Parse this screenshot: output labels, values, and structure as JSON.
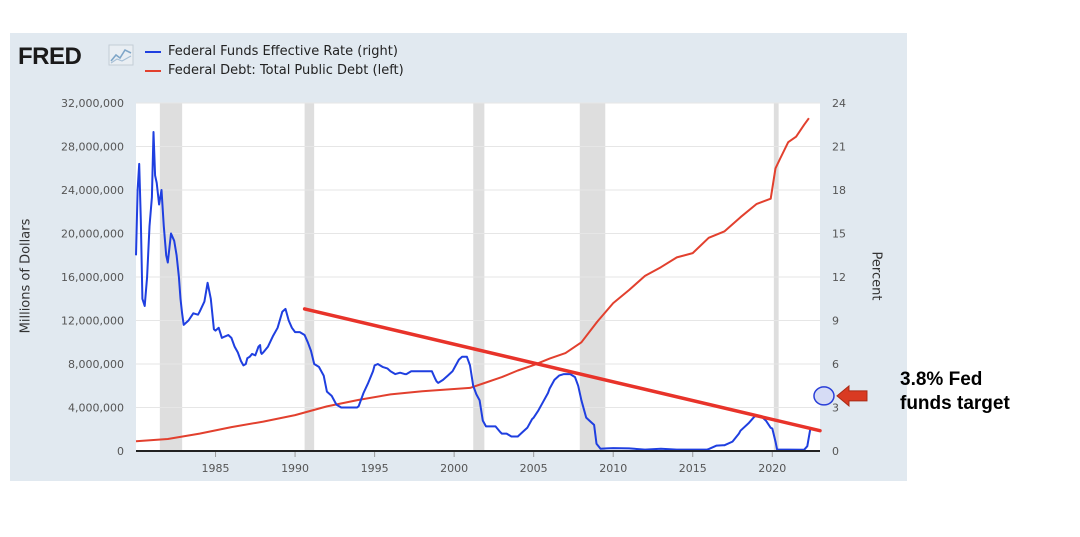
{
  "logo": {
    "text": "FRED"
  },
  "annotation": {
    "line1": "3.8% Fed",
    "line2": "funds target"
  },
  "colors": {
    "fedfunds": "#1f3fe0",
    "debt": "#e2402e",
    "trend": "#e8332a",
    "arrow": "#d93a22",
    "recession": "#dedede",
    "plot_bg": "#ffffff",
    "panel_bg": "#e1e9f0"
  },
  "chart_data": {
    "type": "line",
    "title": "",
    "xlabel": "",
    "ylabel_left": "Millions of Dollars",
    "ylabel_right": "Percent",
    "xlim": [
      1980,
      2023
    ],
    "ylim_left": [
      0,
      32000000
    ],
    "ylim_right": [
      0,
      24
    ],
    "x_ticks": [
      1985,
      1990,
      1995,
      2000,
      2005,
      2010,
      2015,
      2020
    ],
    "y_ticks_left": [
      "0",
      "4,000,000",
      "8,000,000",
      "12,000,000",
      "16,000,000",
      "20,000,000",
      "24,000,000",
      "28,000,000",
      "32,000,000"
    ],
    "y_ticks_left_values": [
      0,
      4000000,
      8000000,
      12000000,
      16000000,
      20000000,
      24000000,
      28000000,
      32000000
    ],
    "y_ticks_right": [
      0,
      3,
      6,
      9,
      12,
      15,
      18,
      21,
      24
    ],
    "legend": [
      "Federal Funds Effective Rate (right)",
      "Federal Debt: Total Public Debt (left)"
    ],
    "recessions": [
      [
        1981.5,
        1982.9
      ],
      [
        1990.6,
        1991.2
      ],
      [
        2001.2,
        2001.9
      ],
      [
        2007.9,
        2009.5
      ],
      [
        2020.1,
        2020.4
      ]
    ],
    "series": [
      {
        "name": "Federal Funds Effective Rate (right)",
        "axis": "right",
        "x": [
          1980.0,
          1980.1,
          1980.2,
          1980.3,
          1980.4,
          1980.55,
          1980.7,
          1980.85,
          1981.0,
          1981.1,
          1981.2,
          1981.3,
          1981.45,
          1981.6,
          1981.75,
          1981.9,
          1982.0,
          1982.2,
          1982.4,
          1982.55,
          1982.7,
          1982.8,
          1982.9,
          1983.0,
          1983.3,
          1983.6,
          1983.9,
          1984.0,
          1984.3,
          1984.5,
          1984.7,
          1984.9,
          1985.0,
          1985.2,
          1985.4,
          1985.6,
          1985.8,
          1986.0,
          1986.2,
          1986.4,
          1986.6,
          1986.75,
          1986.9,
          1987.0,
          1987.15,
          1987.3,
          1987.5,
          1987.7,
          1987.8,
          1987.85,
          1987.9,
          1988.0,
          1988.3,
          1988.6,
          1988.9,
          1989.2,
          1989.4,
          1989.6,
          1989.8,
          1990.0,
          1990.3,
          1990.6,
          1990.8,
          1991.0,
          1991.2,
          1991.5,
          1991.8,
          1992.0,
          1992.3,
          1992.6,
          1992.9,
          1993.0,
          1993.3,
          1993.6,
          1993.9,
          1994.0,
          1994.3,
          1994.6,
          1994.9,
          1995.0,
          1995.2,
          1995.5,
          1995.8,
          1996.0,
          1996.3,
          1996.6,
          1996.9,
          1997.0,
          1997.3,
          1997.6,
          1997.9,
          1998.0,
          1998.3,
          1998.6,
          1998.8,
          1998.9,
          1999.0,
          1999.3,
          1999.6,
          1999.9,
          2000.0,
          2000.3,
          2000.5,
          2000.8,
          2001.0,
          2001.2,
          2001.4,
          2001.6,
          2001.8,
          2002.0,
          2002.3,
          2002.6,
          2002.9,
          2003.0,
          2003.3,
          2003.6,
          2003.9,
          2004.0,
          2004.3,
          2004.6,
          2004.9,
          2005.0,
          2005.3,
          2005.6,
          2005.9,
          2006.0,
          2006.3,
          2006.6,
          2006.9,
          2007.0,
          2007.3,
          2007.6,
          2007.8,
          2008.0,
          2008.3,
          2008.6,
          2008.8,
          2008.95,
          2009.2,
          2009.6,
          2010.0,
          2011.0,
          2012.0,
          2013.0,
          2014.0,
          2015.0,
          2015.9,
          2016.0,
          2016.5,
          2016.9,
          2017.0,
          2017.5,
          2017.9,
          2018.0,
          2018.5,
          2018.9,
          2019.0,
          2019.3,
          2019.6,
          2019.9,
          2020.0,
          2020.2,
          2020.3,
          2021.0,
          2022.0,
          2022.2,
          2022.4
        ],
        "values": [
          13.5,
          18.0,
          19.8,
          16.0,
          10.5,
          10.0,
          12.0,
          15.5,
          17.5,
          22.0,
          19.0,
          18.5,
          17.0,
          18.0,
          15.5,
          13.5,
          13.0,
          15.0,
          14.5,
          13.5,
          12.0,
          10.5,
          9.5,
          8.7,
          9.0,
          9.5,
          9.4,
          9.6,
          10.3,
          11.6,
          10.5,
          8.4,
          8.3,
          8.5,
          7.8,
          7.9,
          8.0,
          7.8,
          7.2,
          6.8,
          6.2,
          5.9,
          6.0,
          6.4,
          6.5,
          6.7,
          6.6,
          7.2,
          7.3,
          6.8,
          6.7,
          6.8,
          7.2,
          7.9,
          8.5,
          9.6,
          9.8,
          9.0,
          8.5,
          8.2,
          8.2,
          8.0,
          7.5,
          6.9,
          6.0,
          5.8,
          5.2,
          4.1,
          3.8,
          3.2,
          3.0,
          3.0,
          3.0,
          3.0,
          3.0,
          3.1,
          4.0,
          4.7,
          5.5,
          5.9,
          6.0,
          5.8,
          5.7,
          5.5,
          5.3,
          5.4,
          5.3,
          5.3,
          5.5,
          5.5,
          5.5,
          5.5,
          5.5,
          5.5,
          5.0,
          4.8,
          4.7,
          4.9,
          5.2,
          5.5,
          5.7,
          6.3,
          6.5,
          6.5,
          5.9,
          4.5,
          3.9,
          3.5,
          2.1,
          1.7,
          1.7,
          1.7,
          1.3,
          1.2,
          1.2,
          1.0,
          1.0,
          1.0,
          1.3,
          1.6,
          2.2,
          2.3,
          2.8,
          3.4,
          4.0,
          4.3,
          4.9,
          5.2,
          5.3,
          5.3,
          5.3,
          5.1,
          4.5,
          3.5,
          2.3,
          2.0,
          1.8,
          0.5,
          0.16,
          0.18,
          0.2,
          0.18,
          0.1,
          0.15,
          0.1,
          0.1,
          0.1,
          0.13,
          0.37,
          0.4,
          0.4,
          0.65,
          1.2,
          1.4,
          1.9,
          2.4,
          2.4,
          2.4,
          2.1,
          1.6,
          1.55,
          0.65,
          0.1,
          0.1,
          0.08,
          0.33,
          1.6
        ]
      },
      {
        "name": "Federal Debt: Total Public Debt (left)",
        "axis": "left",
        "x": [
          1980,
          1982,
          1984,
          1986,
          1988,
          1990,
          1992,
          1994,
          1996,
          1998,
          2000,
          2001,
          2002,
          2003,
          2004,
          2005,
          2006,
          2007,
          2008,
          2009,
          2010,
          2011,
          2012,
          2013,
          2014,
          2015,
          2016,
          2017,
          2018,
          2019,
          2019.9,
          2020.2,
          2020.5,
          2021,
          2021.5,
          2022,
          2022.3
        ],
        "values": [
          900000,
          1100000,
          1600000,
          2200000,
          2700000,
          3300000,
          4100000,
          4700000,
          5200000,
          5500000,
          5700000,
          5800000,
          6300000,
          6800000,
          7400000,
          7900000,
          8500000,
          9000000,
          10000000,
          11900000,
          13600000,
          14800000,
          16100000,
          16900000,
          17800000,
          18200000,
          19600000,
          20200000,
          21500000,
          22700000,
          23200000,
          26000000,
          26900000,
          28400000,
          28900000,
          30000000,
          30600000
        ]
      }
    ],
    "trendline": {
      "from": [
        1990.6,
        9.8
      ],
      "to": [
        2023,
        1.4
      ]
    },
    "marker": {
      "x": 2023.25,
      "value": 3.8
    }
  }
}
